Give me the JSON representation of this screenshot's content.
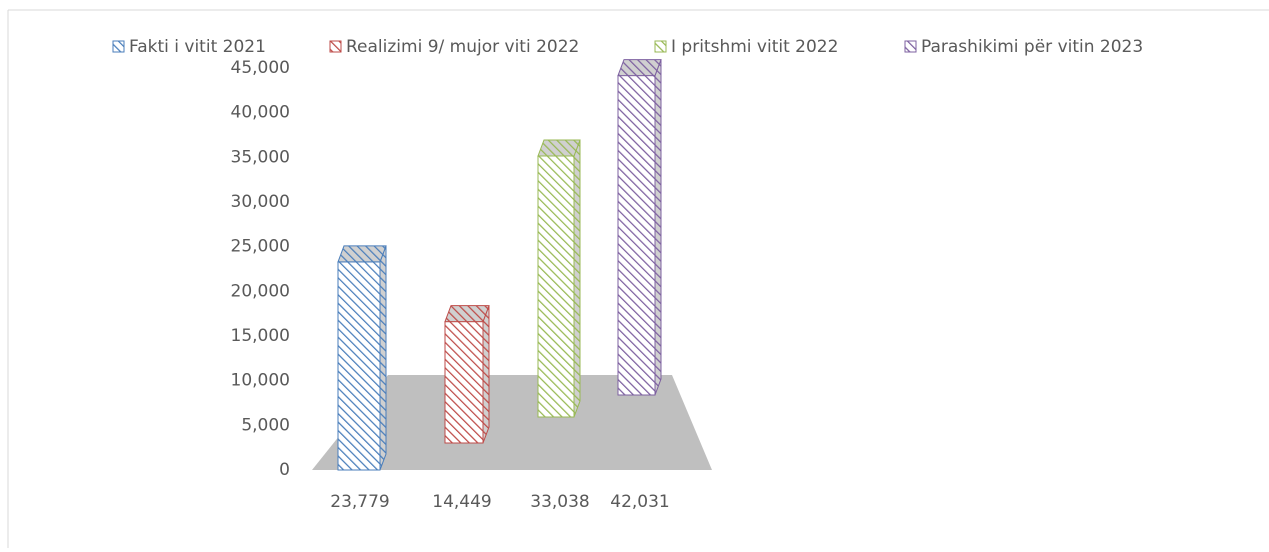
{
  "chart_data": {
    "type": "bar",
    "series": [
      {
        "name": "Fakti i vitit 2021",
        "color": "#4a7ebb",
        "values": [
          23779
        ],
        "value_labels": [
          "23,779"
        ]
      },
      {
        "name": "Realizimi 9/ mujor viti 2022",
        "color": "#be4b48",
        "values": [
          14449
        ],
        "value_labels": [
          "14,449"
        ]
      },
      {
        "name": "I pritshmi vitit 2022",
        "color": "#98b954",
        "values": [
          33038
        ],
        "value_labels": [
          "33,038"
        ]
      },
      {
        "name": "Parashikimi për vitin 2023",
        "color": "#7d60a0",
        "values": [
          42031
        ],
        "value_labels": [
          "42,031"
        ]
      }
    ],
    "ylim": [
      0,
      45000
    ],
    "yticks": [
      0,
      {
        "value": 5000,
        "label": "5,000"
      },
      {
        "value": 10000,
        "label": "10,000"
      },
      {
        "value": 15000,
        "label": "15,000"
      },
      {
        "value": 20000,
        "label": "20,000"
      },
      {
        "value": 25000,
        "label": "25,000"
      },
      {
        "value": 30000,
        "label": "30,000"
      },
      {
        "value": 35000,
        "label": "35,000"
      },
      {
        "value": 40000,
        "label": "40,000"
      },
      {
        "value": 45000,
        "label": "45,000"
      }
    ],
    "legend": "top"
  }
}
